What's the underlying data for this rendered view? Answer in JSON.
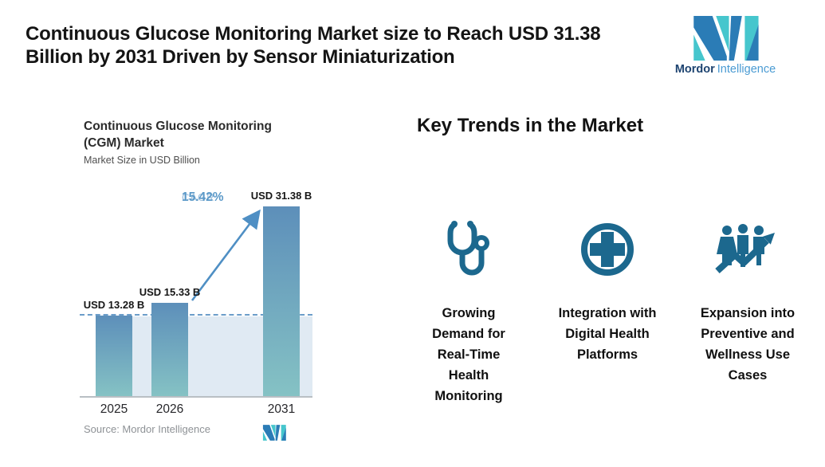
{
  "header": {
    "title_lines": [
      "Continuous Glucose Monitoring Market size to Reach USD 31.38",
      "Billion by 2031 Driven by Sensor Miniaturization"
    ],
    "brand_bold": "Mordor",
    "brand_light": "Intelligence"
  },
  "chart": {
    "title_lines": [
      "Continuous Glucose Monitoring",
      "(CGM) Market"
    ],
    "subtitle": "Market Size in USD Billion",
    "cagr_label": "CAGR",
    "cagr_value": "15.42%",
    "source": "Source: Mordor Intelligence"
  },
  "chart_data": {
    "type": "bar",
    "title": "Continuous Glucose Monitoring (CGM) Market",
    "ylabel": "Market Size in USD Billion",
    "categories": [
      "2025",
      "2026",
      "2031"
    ],
    "values": [
      13.28,
      15.33,
      31.38
    ],
    "bar_labels": [
      "USD 13.28 B",
      "USD 15.33 B",
      "USD 31.38 B"
    ],
    "annotations": {
      "cagr_label": "CAGR",
      "cagr_value": "15.42%",
      "reference_line_at": 13.28
    },
    "ylim": [
      0,
      34
    ],
    "grid": false,
    "legend": false
  },
  "trends": {
    "heading": "Key Trends in the Market",
    "items": [
      {
        "icon": "stethoscope-icon",
        "caption_lines": [
          "Growing",
          "Demand for",
          "Real-Time",
          "Health",
          "Monitoring"
        ]
      },
      {
        "icon": "medical-cross-icon",
        "caption_lines": [
          "Integration with",
          "Digital Health",
          "Platforms"
        ]
      },
      {
        "icon": "people-growth-icon",
        "caption_lines": [
          "Expansion into",
          "Preventive and",
          "Wellness Use",
          "Cases"
        ]
      }
    ]
  },
  "colors": {
    "accent_icon": "#1c688e",
    "logo_blue": "#2b7cb6",
    "logo_teal": "#46c6cd",
    "brand_navy": "#1d4370",
    "brand_blue": "#4a9bd3",
    "bar_top": "#5d8fba",
    "bar_bottom": "#85c2c4",
    "band": "#e0eaf3",
    "dash": "#6b9dc9",
    "arrow": "#4f8fc4",
    "cagr_label": "#9cbedb",
    "cagr_value": "#5b99c8"
  }
}
